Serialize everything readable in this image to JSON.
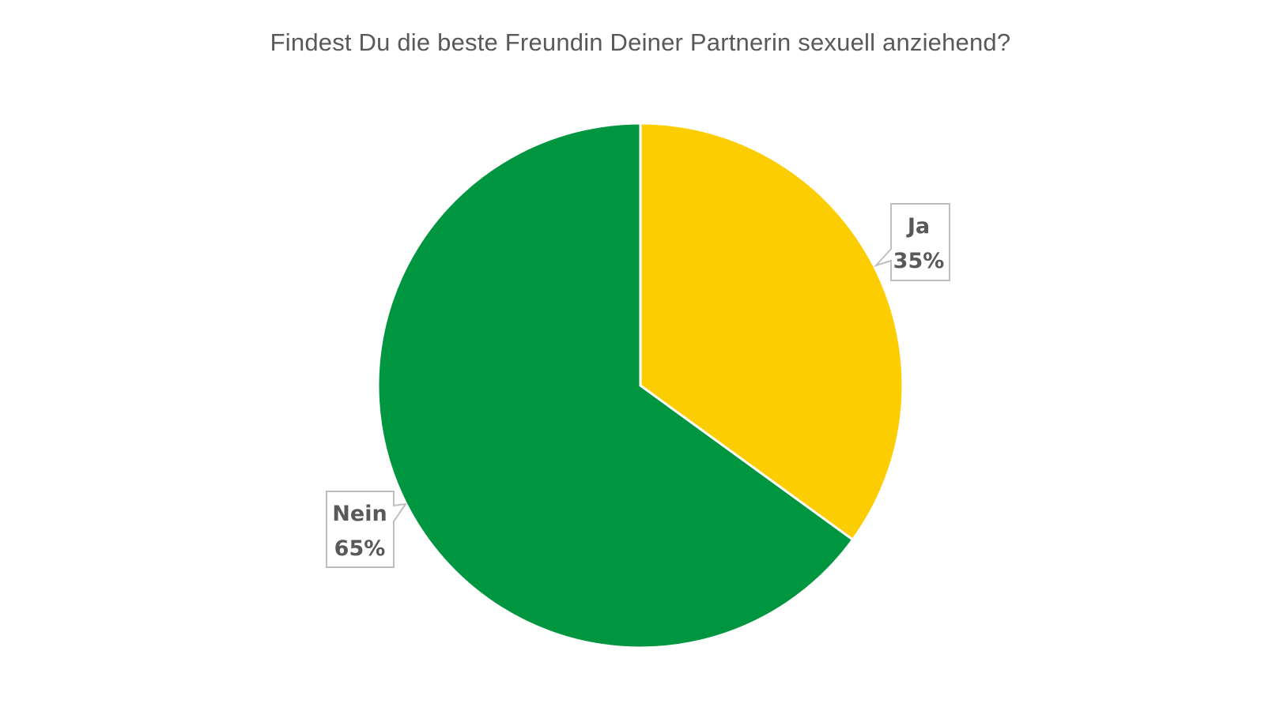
{
  "chart_data": {
    "type": "pie",
    "title": "Findest Du die beste Freundin Deiner Partnerin sexuell anziehend?",
    "categories": [
      "Ja",
      "Nein"
    ],
    "values": [
      35,
      65
    ],
    "unit": "%",
    "colors": {
      "Ja": "#FCCD00",
      "Nein": "#009640"
    },
    "data_labels": [
      "Ja\n35%",
      "Nein\n65%"
    ],
    "label_style": "callout",
    "legend": "none",
    "start_angle": "12 o'clock, clockwise"
  },
  "labels": {
    "ja": {
      "name": "Ja",
      "pct": "35%"
    },
    "nein": {
      "name": "Nein",
      "pct": "65%"
    }
  }
}
